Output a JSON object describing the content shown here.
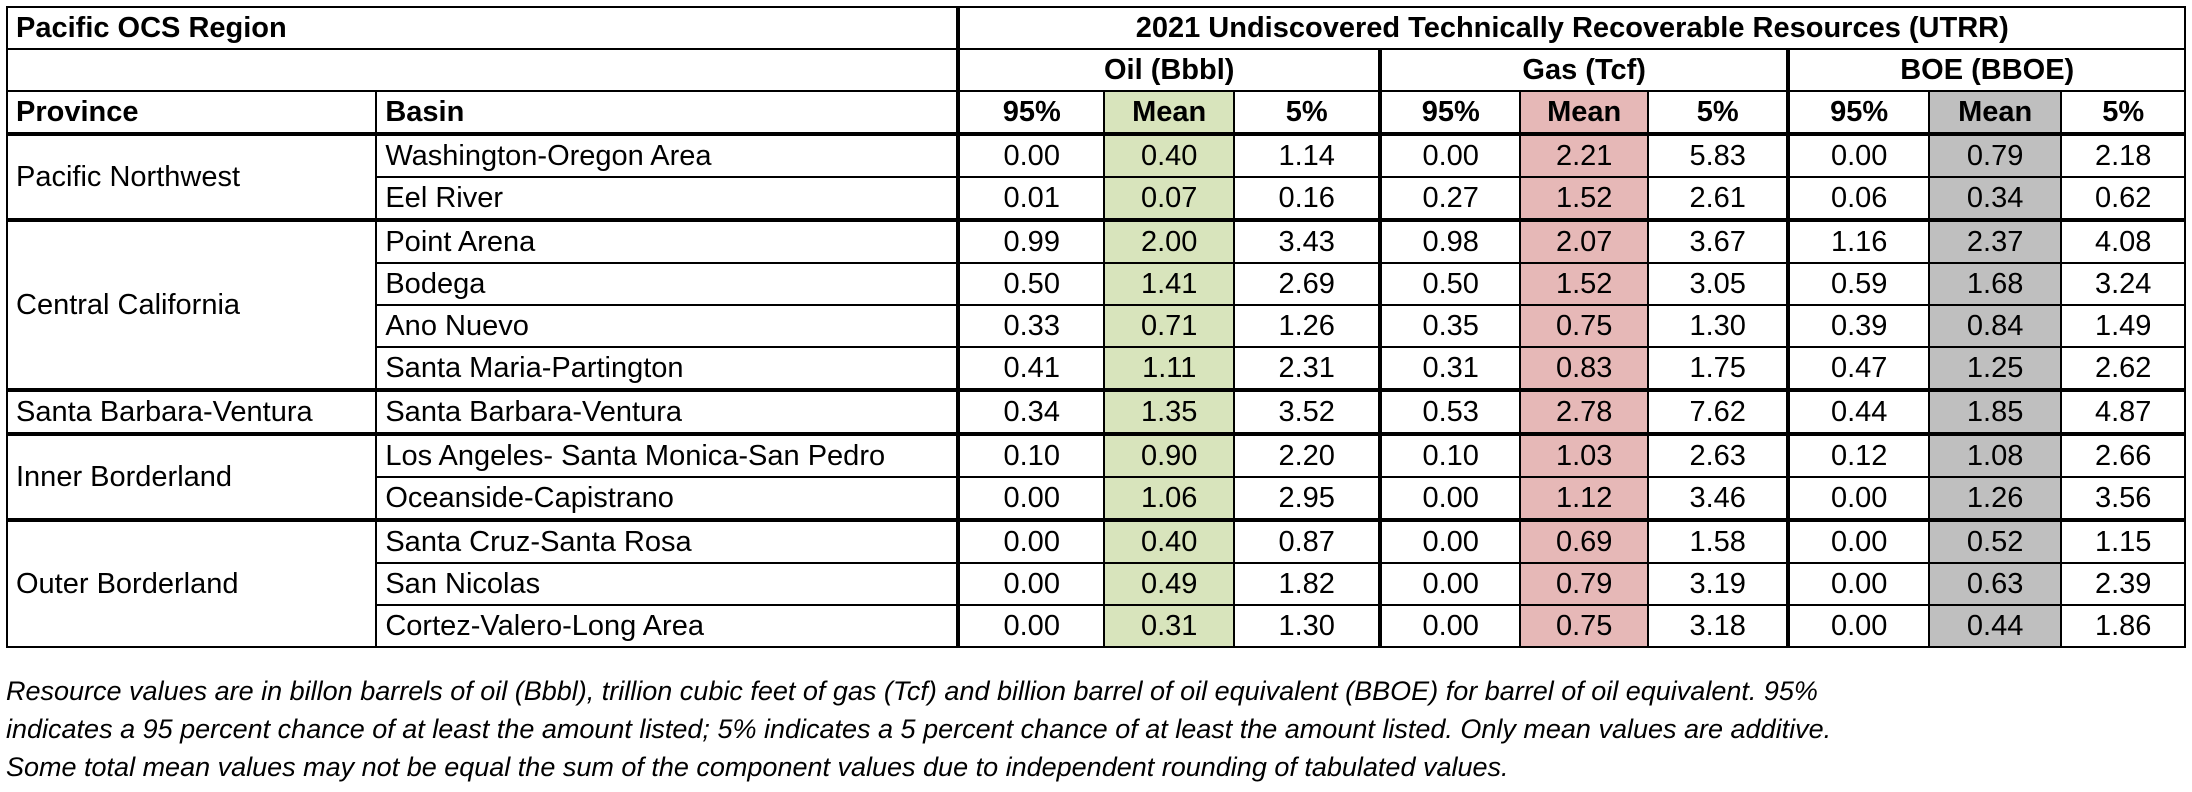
{
  "region_title": "Pacific OCS Region",
  "table_title": "2021 Undiscovered Technically Recoverable Resources (UTRR)",
  "groups": [
    "Oil (Bbbl)",
    "Gas (Tcf)",
    "BOE (BBOE)"
  ],
  "col_province": "Province",
  "col_basin": "Basin",
  "sub_headers": [
    "95%",
    "Mean",
    "5%"
  ],
  "colors": {
    "oil_mean": "#d8e4bc",
    "gas_mean": "#e6b8b7",
    "boe_mean": "#bfbfbf"
  },
  "provinces": [
    {
      "name": "Pacific Northwest",
      "basins": [
        {
          "name": "Washington-Oregon Area",
          "values": [
            "0.00",
            "0.40",
            "1.14",
            "0.00",
            "2.21",
            "5.83",
            "0.00",
            "0.79",
            "2.18"
          ]
        },
        {
          "name": "Eel River",
          "values": [
            "0.01",
            "0.07",
            "0.16",
            "0.27",
            "1.52",
            "2.61",
            "0.06",
            "0.34",
            "0.62"
          ]
        }
      ]
    },
    {
      "name": "Central California",
      "basins": [
        {
          "name": "Point Arena",
          "values": [
            "0.99",
            "2.00",
            "3.43",
            "0.98",
            "2.07",
            "3.67",
            "1.16",
            "2.37",
            "4.08"
          ]
        },
        {
          "name": "Bodega",
          "values": [
            "0.50",
            "1.41",
            "2.69",
            "0.50",
            "1.52",
            "3.05",
            "0.59",
            "1.68",
            "3.24"
          ]
        },
        {
          "name": "Ano Nuevo",
          "values": [
            "0.33",
            "0.71",
            "1.26",
            "0.35",
            "0.75",
            "1.30",
            "0.39",
            "0.84",
            "1.49"
          ]
        },
        {
          "name": "Santa Maria-Partington",
          "values": [
            "0.41",
            "1.11",
            "2.31",
            "0.31",
            "0.83",
            "1.75",
            "0.47",
            "1.25",
            "2.62"
          ]
        }
      ]
    },
    {
      "name": "Santa Barbara-Ventura",
      "basins": [
        {
          "name": "Santa Barbara-Ventura",
          "values": [
            "0.34",
            "1.35",
            "3.52",
            "0.53",
            "2.78",
            "7.62",
            "0.44",
            "1.85",
            "4.87"
          ]
        }
      ]
    },
    {
      "name": "Inner Borderland",
      "basins": [
        {
          "name": "Los Angeles- Santa Monica-San Pedro",
          "values": [
            "0.10",
            "0.90",
            "2.20",
            "0.10",
            "1.03",
            "2.63",
            "0.12",
            "1.08",
            "2.66"
          ]
        },
        {
          "name": "Oceanside-Capistrano",
          "values": [
            "0.00",
            "1.06",
            "2.95",
            "0.00",
            "1.12",
            "3.46",
            "0.00",
            "1.26",
            "3.56"
          ]
        }
      ]
    },
    {
      "name": "Outer Borderland",
      "basins": [
        {
          "name": "Santa Cruz-Santa Rosa",
          "values": [
            "0.00",
            "0.40",
            "0.87",
            "0.00",
            "0.69",
            "1.58",
            "0.00",
            "0.52",
            "1.15"
          ]
        },
        {
          "name": "San Nicolas",
          "values": [
            "0.00",
            "0.49",
            "1.82",
            "0.00",
            "0.79",
            "3.19",
            "0.00",
            "0.63",
            "2.39"
          ]
        },
        {
          "name": "Cortez-Valero-Long Area",
          "values": [
            "0.00",
            "0.31",
            "1.30",
            "0.00",
            "0.75",
            "3.18",
            "0.00",
            "0.44",
            "1.86"
          ]
        }
      ]
    }
  ],
  "footnote": [
    "Resource values are in billon barrels of oil (Bbbl), trillion cubic feet of gas (Tcf) and billion barrel of oil equivalent (BBOE) for barrel of oil equivalent. 95%",
    "indicates a 95 percent chance of at least the amount listed; 5% indicates a 5 percent chance of at least the amount listed.  Only mean values are additive.",
    "Some total mean values may not be equal the sum of the component values due to independent rounding of tabulated values."
  ]
}
